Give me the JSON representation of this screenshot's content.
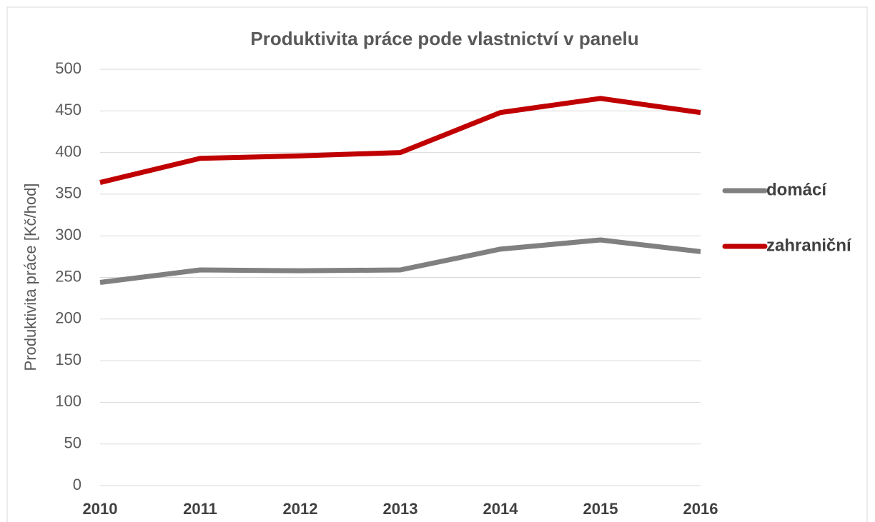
{
  "chart_data": {
    "type": "line",
    "title": "Produktivita práce pode vlastnictví v panelu",
    "y_label": "Produktivita práce [Kč/hod]",
    "x": [
      2010,
      2011,
      2012,
      2013,
      2014,
      2015,
      2016
    ],
    "series": [
      {
        "name": "domácí",
        "color": "#808080",
        "values": [
          244,
          259,
          258,
          259,
          284,
          295,
          281
        ]
      },
      {
        "name": "zahraniční",
        "color": "#c00000",
        "values": [
          364,
          393,
          396,
          400,
          448,
          465,
          448
        ]
      }
    ],
    "xlim": [
      2010,
      2016
    ],
    "xticks": [
      2010,
      2011,
      2012,
      2013,
      2014,
      2015,
      2016
    ],
    "ylim": [
      0,
      500
    ],
    "yticks": [
      0,
      50,
      100,
      150,
      200,
      250,
      300,
      350,
      400,
      450,
      500
    ],
    "grid": true,
    "legend": "right"
  }
}
